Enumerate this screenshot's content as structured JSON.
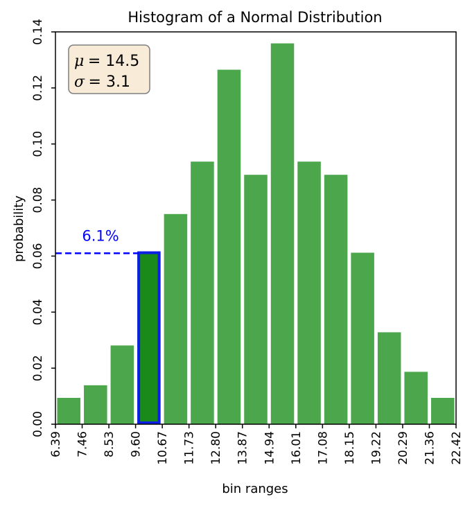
{
  "chart_data": {
    "type": "bar",
    "title": "Histogram of a Normal Distribution",
    "xlabel": "bin ranges",
    "ylabel": "probability",
    "x_tick_labels": [
      "6.39",
      "7.46",
      "8.53",
      "9.60",
      "10.67",
      "11.73",
      "12.80",
      "13.87",
      "14.94",
      "16.01",
      "17.08",
      "18.15",
      "19.22",
      "20.29",
      "21.36",
      "22.42"
    ],
    "bin_edges": [
      6.39,
      7.46,
      8.53,
      9.6,
      10.67,
      11.73,
      12.8,
      13.87,
      14.94,
      16.01,
      17.08,
      18.15,
      19.22,
      20.29,
      21.36,
      22.42
    ],
    "values": [
      0.0094,
      0.0139,
      0.0281,
      0.0612,
      0.075,
      0.0937,
      0.1265,
      0.089,
      0.1359,
      0.0937,
      0.089,
      0.0612,
      0.0328,
      0.0187,
      0.0094
    ],
    "xlim": [
      6.39,
      22.42
    ],
    "ylim": [
      0,
      0.14
    ],
    "y_ticks": [
      "0.00",
      "0.02",
      "0.04",
      "0.06",
      "0.08",
      "0.10",
      "0.12",
      "0.14"
    ],
    "y_tick_values": [
      0,
      0.02,
      0.04,
      0.06,
      0.08,
      0.1,
      0.12,
      0.14
    ],
    "bar_color": "#4ca64c",
    "highlight": {
      "bin_index": 3,
      "fill_color": "#1a8a1a",
      "edge_color": "#0b1fe6",
      "label": "6.1%",
      "value": 0.061,
      "label_color": "#0000ff"
    },
    "stats_box": {
      "line1_symbol": "μ",
      "line1_value": "= 14.5",
      "line2_symbol": "σ",
      "line2_value": "= 3.1",
      "background": "#f8ebd8",
      "border": "#7f7f7f"
    },
    "grid": false,
    "legend": "none"
  }
}
